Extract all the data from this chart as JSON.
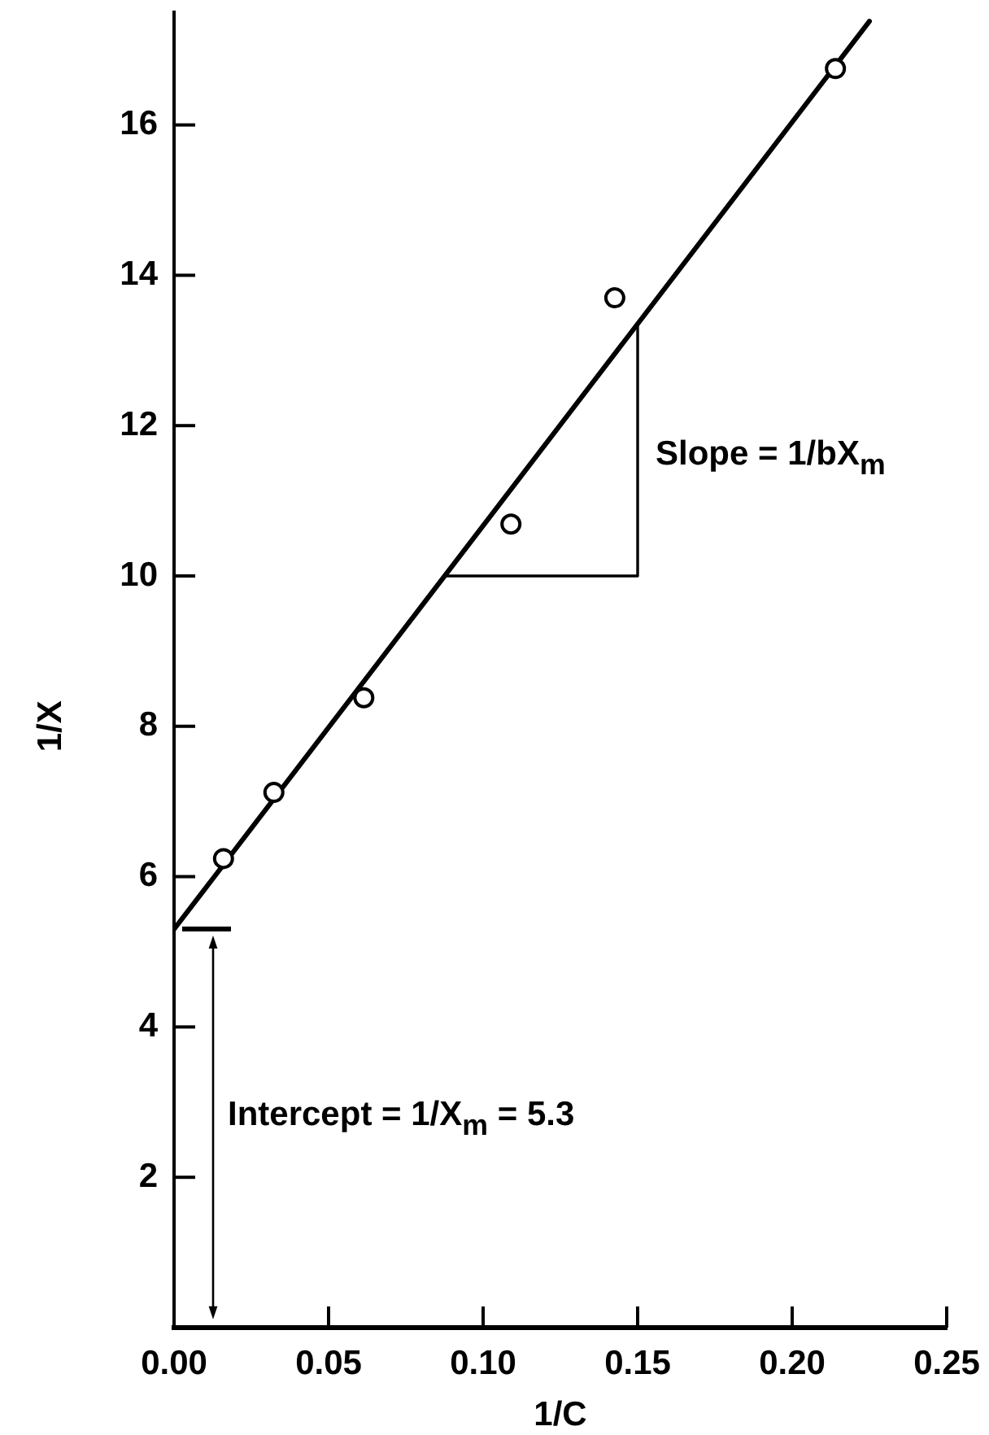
{
  "chart_data": {
    "type": "scatter",
    "xlabel": "1/C",
    "ylabel": "1/X",
    "xlim": [
      0,
      0.25
    ],
    "xticks": [
      {
        "value": 0,
        "label": "0.00"
      },
      0.05,
      {
        "value": 0.1,
        "label": "0.10"
      },
      0.15,
      {
        "value": 0.2,
        "label": "0.20"
      },
      0.25
    ],
    "ylim": [
      0,
      17.5
    ],
    "yticks": [
      2,
      4,
      6,
      8,
      10,
      12,
      14,
      16
    ],
    "series": [
      {
        "color": "#000000",
        "marker": "circle",
        "x": [
          0.016,
          0.0323,
          0.0614,
          0.109,
          0.1426,
          0.214
        ],
        "values": [
          6.24,
          7.12,
          8.38,
          10.69,
          13.7,
          16.75
        ]
      },
      {
        "type": "line",
        "color": "#000000",
        "x": [
          0,
          0.225
        ],
        "values": [
          5.3,
          17.38
        ]
      },
      {
        "type": "line",
        "color": "#000000",
        "x": [
          0.0875,
          0.15,
          0.15
        ],
        "values": [
          10,
          10,
          13.35
        ]
      }
    ],
    "annotations": [
      {
        "text": "Slope = 1/bX$_{m}$",
        "x": 0.15,
        "y": 11.7
      },
      "Intercept = 1/X$_{m}$ = 5.3"
    ],
    "grid": false,
    "legend": false
  }
}
